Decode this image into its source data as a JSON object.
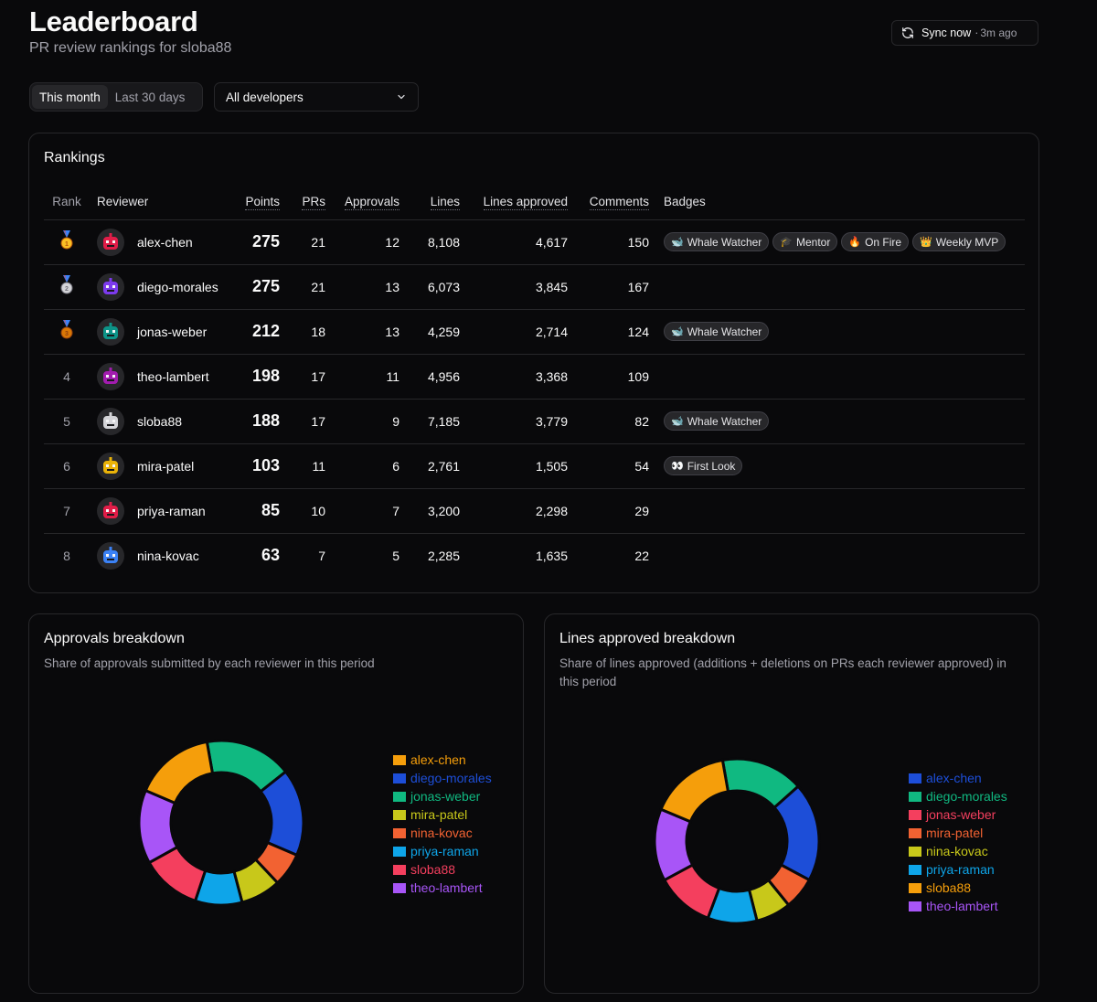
{
  "header": {
    "title": "Leaderboard",
    "subtitle": "PR review rankings for sloba88",
    "sync_label": "Sync now",
    "sync_separator": "·",
    "sync_ago": "3m ago"
  },
  "filters": {
    "period_tabs": [
      {
        "label": "This month",
        "active": true
      },
      {
        "label": "Last 30 days",
        "active": false
      }
    ],
    "developer_select": "All developers"
  },
  "rankings": {
    "title": "Rankings",
    "columns": {
      "rank": "Rank",
      "reviewer": "Reviewer",
      "points": "Points",
      "prs": "PRs",
      "approvals": "Approvals",
      "lines": "Lines",
      "lines_approved": "Lines approved",
      "comments": "Comments",
      "badges": "Badges"
    },
    "rows": [
      {
        "rank": "1",
        "medal": "gold",
        "reviewer": "alex-chen",
        "avatar_color": "#e11d48",
        "points": "275",
        "prs": "21",
        "approvals": "12",
        "lines": "8,108",
        "lines_approved": "4,617",
        "comments": "150",
        "badges": [
          {
            "icon": "🐋",
            "label": "Whale Watcher"
          },
          {
            "icon": "🎓",
            "label": "Mentor"
          },
          {
            "icon": "🔥",
            "label": "On Fire"
          },
          {
            "icon": "👑",
            "label": "Weekly MVP"
          }
        ]
      },
      {
        "rank": "2",
        "medal": "silver",
        "reviewer": "diego-morales",
        "avatar_color": "#7c3aed",
        "points": "275",
        "prs": "21",
        "approvals": "13",
        "lines": "6,073",
        "lines_approved": "3,845",
        "comments": "167",
        "badges": []
      },
      {
        "rank": "3",
        "medal": "bronze",
        "reviewer": "jonas-weber",
        "avatar_color": "#0d9488",
        "points": "212",
        "prs": "18",
        "approvals": "13",
        "lines": "4,259",
        "lines_approved": "2,714",
        "comments": "124",
        "badges": [
          {
            "icon": "🐋",
            "label": "Whale Watcher"
          }
        ]
      },
      {
        "rank": "4",
        "medal": "",
        "reviewer": "theo-lambert",
        "avatar_color": "#a21caf",
        "points": "198",
        "prs": "17",
        "approvals": "11",
        "lines": "4,956",
        "lines_approved": "3,368",
        "comments": "109",
        "badges": []
      },
      {
        "rank": "5",
        "medal": "",
        "reviewer": "sloba88",
        "avatar_color": "#d4d4d8",
        "points": "188",
        "prs": "17",
        "approvals": "9",
        "lines": "7,185",
        "lines_approved": "3,779",
        "comments": "82",
        "badges": [
          {
            "icon": "🐋",
            "label": "Whale Watcher"
          }
        ]
      },
      {
        "rank": "6",
        "medal": "",
        "reviewer": "mira-patel",
        "avatar_color": "#eab308",
        "points": "103",
        "prs": "11",
        "approvals": "6",
        "lines": "2,761",
        "lines_approved": "1,505",
        "comments": "54",
        "badges": [
          {
            "icon": "👀",
            "label": "First Look"
          }
        ]
      },
      {
        "rank": "7",
        "medal": "",
        "reviewer": "priya-raman",
        "avatar_color": "#e11d48",
        "points": "85",
        "prs": "10",
        "approvals": "7",
        "lines": "3,200",
        "lines_approved": "2,298",
        "comments": "29",
        "badges": []
      },
      {
        "rank": "8",
        "medal": "",
        "reviewer": "nina-kovac",
        "avatar_color": "#3b82f6",
        "points": "63",
        "prs": "7",
        "approvals": "5",
        "lines": "2,285",
        "lines_approved": "1,635",
        "comments": "22",
        "badges": []
      }
    ]
  },
  "chart_data": [
    {
      "type": "pie",
      "title": "Approvals breakdown",
      "subtitle": "Share of approvals submitted by each reviewer in this period",
      "series": [
        {
          "name": "alex-chen",
          "value": 12,
          "color": "#f59e0b"
        },
        {
          "name": "diego-morales",
          "value": 13,
          "color": "#1d4ed8"
        },
        {
          "name": "jonas-weber",
          "value": 13,
          "color": "#10b981"
        },
        {
          "name": "mira-patel",
          "value": 6,
          "color": "#c8c81a"
        },
        {
          "name": "nina-kovac",
          "value": 5,
          "color": "#f26232"
        },
        {
          "name": "priya-raman",
          "value": 7,
          "color": "#0ea5e9"
        },
        {
          "name": "sloba88",
          "value": 9,
          "color": "#f43f5e"
        },
        {
          "name": "theo-lambert",
          "value": 11,
          "color": "#a855f7"
        }
      ],
      "draw_order": [
        "jonas-weber",
        "diego-morales",
        "nina-kovac",
        "mira-patel",
        "priya-raman",
        "sloba88",
        "theo-lambert",
        "alex-chen"
      ]
    },
    {
      "type": "pie",
      "title": "Lines approved breakdown",
      "subtitle": "Share of lines approved (additions + deletions on PRs each reviewer approved) in this period",
      "series": [
        {
          "name": "alex-chen",
          "value": 4617,
          "color": "#1d4ed8"
        },
        {
          "name": "diego-morales",
          "value": 3845,
          "color": "#10b981"
        },
        {
          "name": "jonas-weber",
          "value": 2714,
          "color": "#f43f5e"
        },
        {
          "name": "mira-patel",
          "value": 1505,
          "color": "#f26232"
        },
        {
          "name": "nina-kovac",
          "value": 1635,
          "color": "#c8c81a"
        },
        {
          "name": "priya-raman",
          "value": 2298,
          "color": "#0ea5e9"
        },
        {
          "name": "sloba88",
          "value": 3779,
          "color": "#f59e0b"
        },
        {
          "name": "theo-lambert",
          "value": 3368,
          "color": "#a855f7"
        }
      ],
      "draw_order": [
        "diego-morales",
        "alex-chen",
        "mira-patel",
        "nina-kovac",
        "priya-raman",
        "jonas-weber",
        "theo-lambert",
        "sloba88"
      ]
    }
  ]
}
